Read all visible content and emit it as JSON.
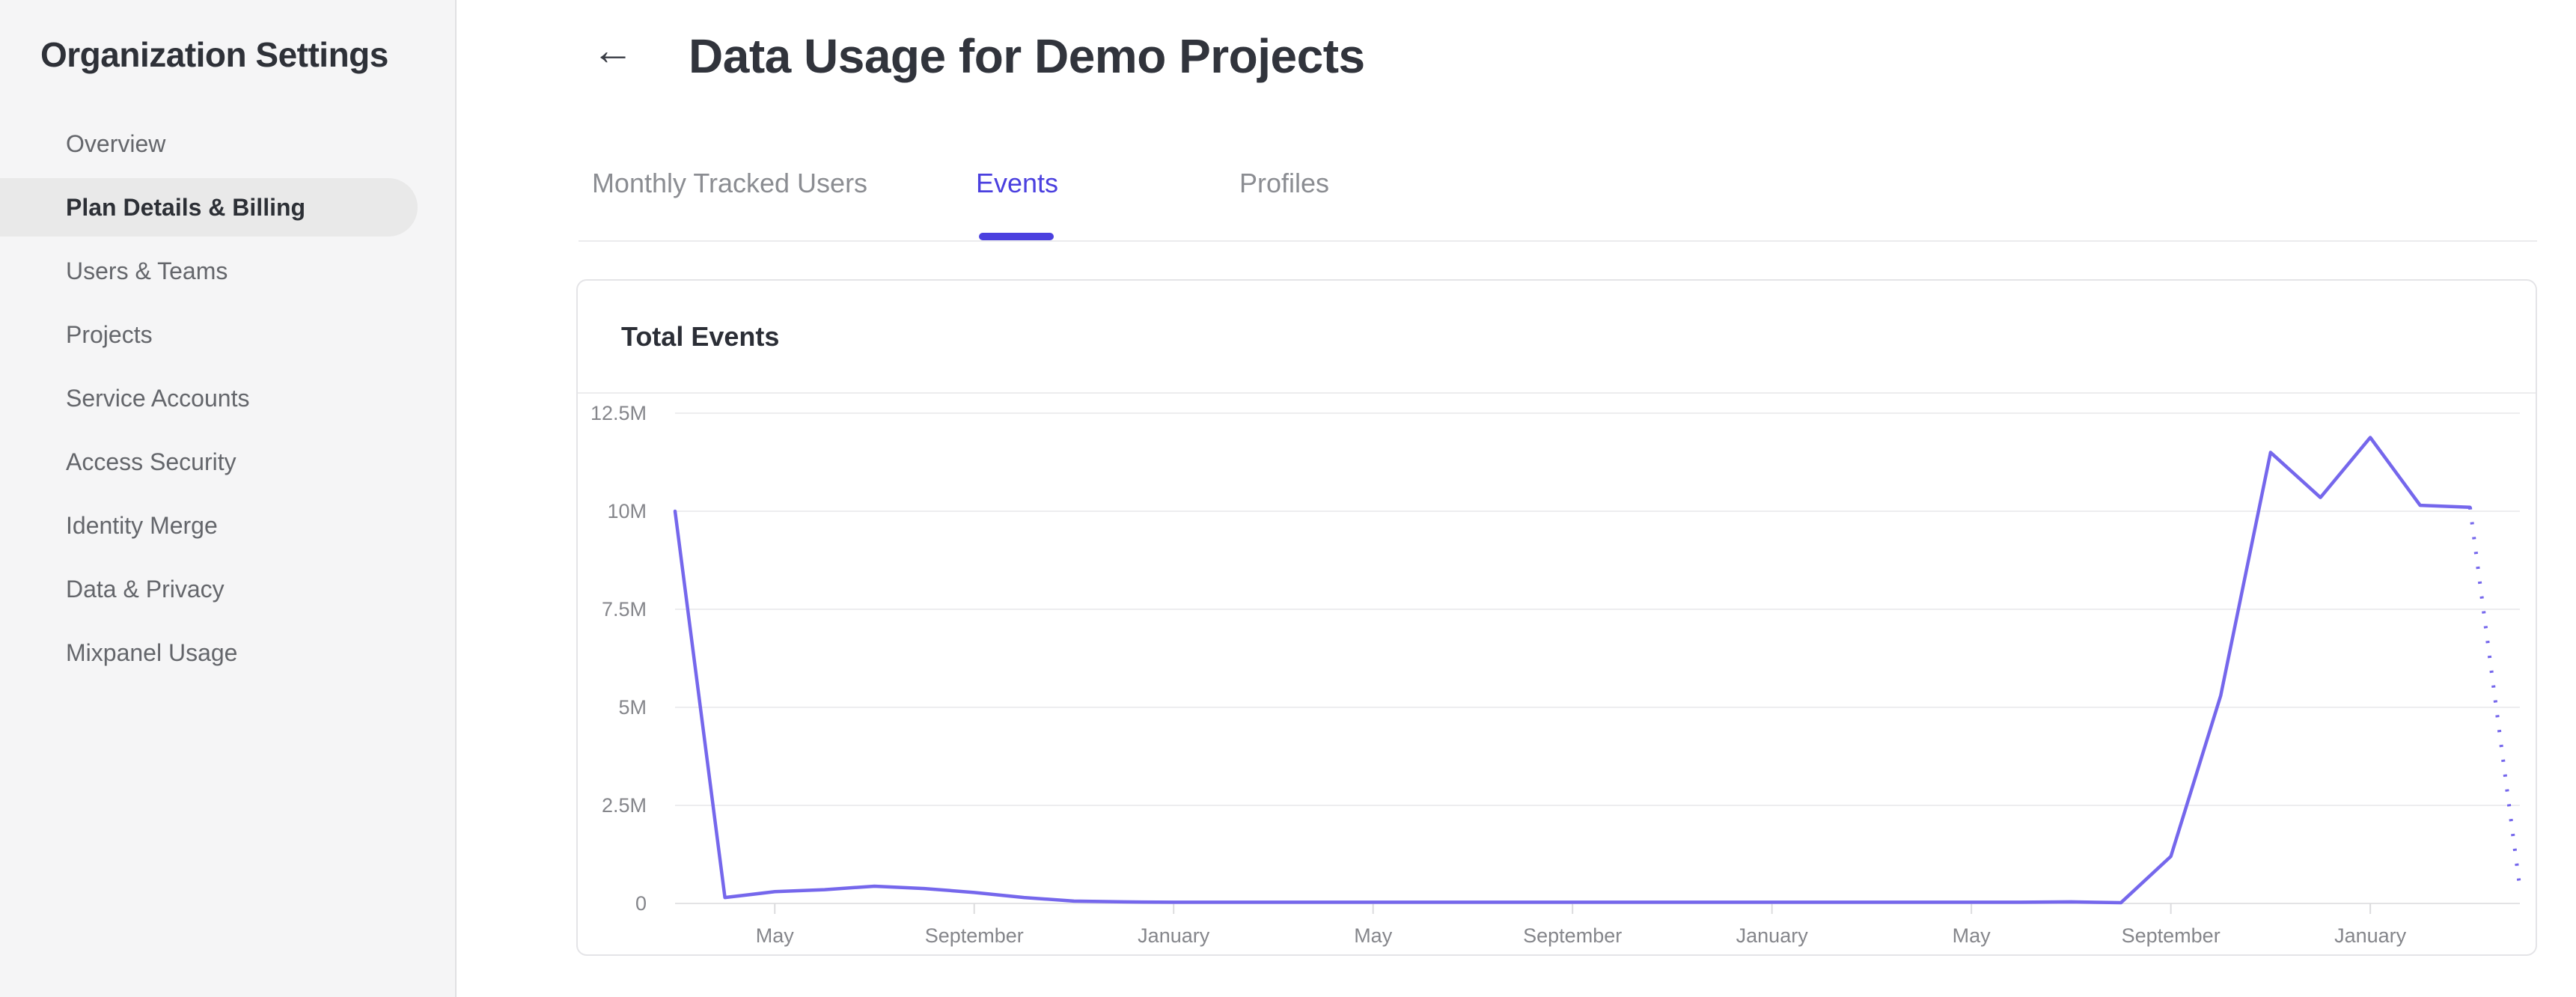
{
  "sidebar": {
    "title": "Organization Settings",
    "items": [
      {
        "label": "Overview",
        "active": false
      },
      {
        "label": "Plan Details & Billing",
        "active": true
      },
      {
        "label": "Users & Teams",
        "active": false
      },
      {
        "label": "Projects",
        "active": false
      },
      {
        "label": "Service Accounts",
        "active": false
      },
      {
        "label": "Access Security",
        "active": false
      },
      {
        "label": "Identity Merge",
        "active": false
      },
      {
        "label": "Data & Privacy",
        "active": false
      },
      {
        "label": "Mixpanel Usage",
        "active": false
      }
    ]
  },
  "header": {
    "back_icon": "←",
    "title": "Data Usage for Demo Projects"
  },
  "tabs": [
    {
      "label": "Monthly Tracked Users",
      "active": false
    },
    {
      "label": "Events",
      "active": true
    },
    {
      "label": "Profiles",
      "active": false
    }
  ],
  "card": {
    "title": "Total Events"
  },
  "chart_data": {
    "type": "line",
    "title": "Total Events",
    "xlabel": "",
    "ylabel": "",
    "ylim": [
      0,
      12.5
    ],
    "grid": "horizontal",
    "legend": "none",
    "unit": "events (millions)",
    "months": [
      "Mar",
      "Apr",
      "May",
      "Jun",
      "Jul",
      "Aug",
      "Sep",
      "Oct",
      "Nov",
      "Dec",
      "Jan",
      "Feb",
      "Mar",
      "Apr",
      "May",
      "Jun",
      "Jul",
      "Aug",
      "Sep",
      "Oct",
      "Nov",
      "Dec",
      "Jan",
      "Feb",
      "Mar",
      "Apr",
      "May",
      "Jun",
      "Jul",
      "Aug",
      "Sep",
      "Oct",
      "Nov",
      "Dec",
      "Jan",
      "Feb",
      "Mar",
      "Apr"
    ],
    "values_millions": [
      10.0,
      0.15,
      0.3,
      0.35,
      0.44,
      0.38,
      0.28,
      0.15,
      0.06,
      0.04,
      0.03,
      0.03,
      0.03,
      0.03,
      0.03,
      0.03,
      0.03,
      0.03,
      0.03,
      0.03,
      0.03,
      0.03,
      0.03,
      0.03,
      0.03,
      0.03,
      0.03,
      0.03,
      0.04,
      0.02,
      1.2,
      5.3,
      11.5,
      10.35,
      11.88,
      10.15,
      10.1,
      0.4
    ],
    "dotted_from_index": 36,
    "dotted_note": "final month segment rendered as dotted projection",
    "y_ticks": [
      {
        "value": 0,
        "label": "0"
      },
      {
        "value": 2.5,
        "label": "2.5M"
      },
      {
        "value": 5,
        "label": "5M"
      },
      {
        "value": 7.5,
        "label": "7.5M"
      },
      {
        "value": 10,
        "label": "10M"
      },
      {
        "value": 12.5,
        "label": "12.5M"
      }
    ],
    "x_ticks": [
      {
        "index": 2,
        "label": "May"
      },
      {
        "index": 6,
        "label": "September"
      },
      {
        "index": 10,
        "label": "January"
      },
      {
        "index": 14,
        "label": "May"
      },
      {
        "index": 18,
        "label": "September"
      },
      {
        "index": 22,
        "label": "January"
      },
      {
        "index": 26,
        "label": "May"
      },
      {
        "index": 30,
        "label": "September"
      },
      {
        "index": 34,
        "label": "January"
      }
    ],
    "line_color": "#7567ec",
    "grid_color": "#ededef",
    "axis_color": "#e3e3e5",
    "tick_color": "#dcdcde",
    "label_color": "#85868b"
  }
}
